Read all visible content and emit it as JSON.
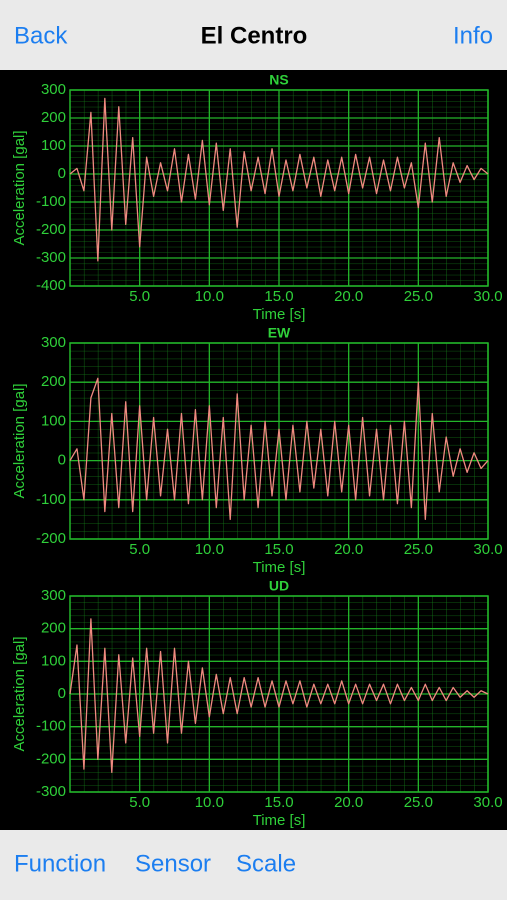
{
  "nav": {
    "back": "Back",
    "title": "El Centro",
    "info": "Info"
  },
  "toolbar": {
    "items": [
      "Function",
      "Sensor",
      "Scale"
    ]
  },
  "chart_data": [
    {
      "type": "line",
      "title": "NS",
      "xlabel": "Time [s]",
      "ylabel": "Acceleration [gal]",
      "color": "#f08a80",
      "grid": true,
      "xlim": [
        0,
        30
      ],
      "ylim": [
        -400,
        300
      ],
      "xticks": [
        {
          "value": 5,
          "label": "5.0"
        },
        {
          "value": 10,
          "label": "10.0"
        },
        {
          "value": 15,
          "label": "15.0"
        },
        {
          "value": 20,
          "label": "20.0"
        },
        {
          "value": 25,
          "label": "25.0"
        },
        {
          "value": 30,
          "label": "30.0"
        }
      ],
      "yticks": [
        300,
        200,
        100,
        0,
        -100,
        -200,
        -300,
        -400
      ],
      "x": [
        0,
        0.5,
        1,
        1.5,
        2,
        2.5,
        3,
        3.5,
        4,
        4.5,
        5,
        5.5,
        6,
        6.5,
        7,
        7.5,
        8,
        8.5,
        9,
        9.5,
        10,
        10.5,
        11,
        11.5,
        12,
        12.5,
        13,
        13.5,
        14,
        14.5,
        15,
        15.5,
        16,
        16.5,
        17,
        17.5,
        18,
        18.5,
        19,
        19.5,
        20,
        20.5,
        21,
        21.5,
        22,
        22.5,
        23,
        23.5,
        24,
        24.5,
        25,
        25.5,
        26,
        26.5,
        27,
        27.5,
        28,
        28.5,
        29,
        29.5,
        30
      ],
      "values": [
        0,
        20,
        -60,
        220,
        -310,
        270,
        -200,
        240,
        -180,
        130,
        -260,
        60,
        -80,
        40,
        -60,
        90,
        -100,
        70,
        -90,
        120,
        -110,
        110,
        -130,
        90,
        -190,
        80,
        -60,
        60,
        -70,
        90,
        -80,
        50,
        -60,
        70,
        -50,
        60,
        -80,
        50,
        -60,
        60,
        -70,
        70,
        -50,
        60,
        -70,
        50,
        -60,
        60,
        -50,
        40,
        -120,
        110,
        -100,
        130,
        -80,
        40,
        -30,
        30,
        -20,
        20,
        0
      ]
    },
    {
      "type": "line",
      "title": "EW",
      "xlabel": "Time [s]",
      "ylabel": "Acceleration [gal]",
      "color": "#f08a80",
      "grid": true,
      "xlim": [
        0,
        30
      ],
      "ylim": [
        -200,
        300
      ],
      "xticks": [
        {
          "value": 5,
          "label": "5.0"
        },
        {
          "value": 10,
          "label": "10.0"
        },
        {
          "value": 15,
          "label": "15.0"
        },
        {
          "value": 20,
          "label": "20.0"
        },
        {
          "value": 25,
          "label": "25.0"
        },
        {
          "value": 30,
          "label": "30.0"
        }
      ],
      "yticks": [
        300,
        200,
        100,
        0,
        -100,
        -200
      ],
      "x": [
        0,
        0.5,
        1,
        1.5,
        2,
        2.5,
        3,
        3.5,
        4,
        4.5,
        5,
        5.5,
        6,
        6.5,
        7,
        7.5,
        8,
        8.5,
        9,
        9.5,
        10,
        10.5,
        11,
        11.5,
        12,
        12.5,
        13,
        13.5,
        14,
        14.5,
        15,
        15.5,
        16,
        16.5,
        17,
        17.5,
        18,
        18.5,
        19,
        19.5,
        20,
        20.5,
        21,
        21.5,
        22,
        22.5,
        23,
        23.5,
        24,
        24.5,
        25,
        25.5,
        26,
        26.5,
        27,
        27.5,
        28,
        28.5,
        29,
        29.5,
        30
      ],
      "values": [
        0,
        30,
        -100,
        160,
        210,
        -130,
        120,
        -120,
        150,
        -130,
        140,
        -100,
        110,
        -90,
        80,
        -100,
        120,
        -110,
        130,
        -100,
        140,
        -120,
        110,
        -150,
        170,
        -100,
        90,
        -120,
        100,
        -90,
        80,
        -100,
        90,
        -80,
        100,
        -70,
        80,
        -90,
        100,
        -80,
        90,
        -100,
        110,
        -90,
        80,
        -100,
        90,
        -110,
        100,
        -120,
        200,
        -150,
        120,
        -80,
        60,
        -40,
        30,
        -30,
        20,
        -20,
        0
      ]
    },
    {
      "type": "line",
      "title": "UD",
      "xlabel": "Time [s]",
      "ylabel": "Acceleration [gal]",
      "color": "#f08a80",
      "grid": true,
      "xlim": [
        0,
        30
      ],
      "ylim": [
        -300,
        300
      ],
      "xticks": [
        {
          "value": 5,
          "label": "5.0"
        },
        {
          "value": 10,
          "label": "10.0"
        },
        {
          "value": 15,
          "label": "15.0"
        },
        {
          "value": 20,
          "label": "20.0"
        },
        {
          "value": 25,
          "label": "25.0"
        },
        {
          "value": 30,
          "label": "30.0"
        }
      ],
      "yticks": [
        300,
        200,
        100,
        0,
        -100,
        -200,
        -300
      ],
      "x": [
        0,
        0.5,
        1,
        1.5,
        2,
        2.5,
        3,
        3.5,
        4,
        4.5,
        5,
        5.5,
        6,
        6.5,
        7,
        7.5,
        8,
        8.5,
        9,
        9.5,
        10,
        10.5,
        11,
        11.5,
        12,
        12.5,
        13,
        13.5,
        14,
        14.5,
        15,
        15.5,
        16,
        16.5,
        17,
        17.5,
        18,
        18.5,
        19,
        19.5,
        20,
        20.5,
        21,
        21.5,
        22,
        22.5,
        23,
        23.5,
        24,
        24.5,
        25,
        25.5,
        26,
        26.5,
        27,
        27.5,
        28,
        28.5,
        29,
        29.5,
        30
      ],
      "values": [
        0,
        150,
        -230,
        230,
        -200,
        140,
        -240,
        120,
        -150,
        110,
        -130,
        140,
        -120,
        130,
        -150,
        140,
        -120,
        100,
        -90,
        80,
        -70,
        60,
        -60,
        50,
        -60,
        50,
        -40,
        50,
        -40,
        40,
        -40,
        40,
        -30,
        40,
        -40,
        30,
        -30,
        30,
        -30,
        40,
        -30,
        30,
        -30,
        30,
        -20,
        30,
        -30,
        30,
        -20,
        20,
        -20,
        30,
        -20,
        20,
        -20,
        20,
        -10,
        10,
        -10,
        10,
        0
      ]
    }
  ]
}
